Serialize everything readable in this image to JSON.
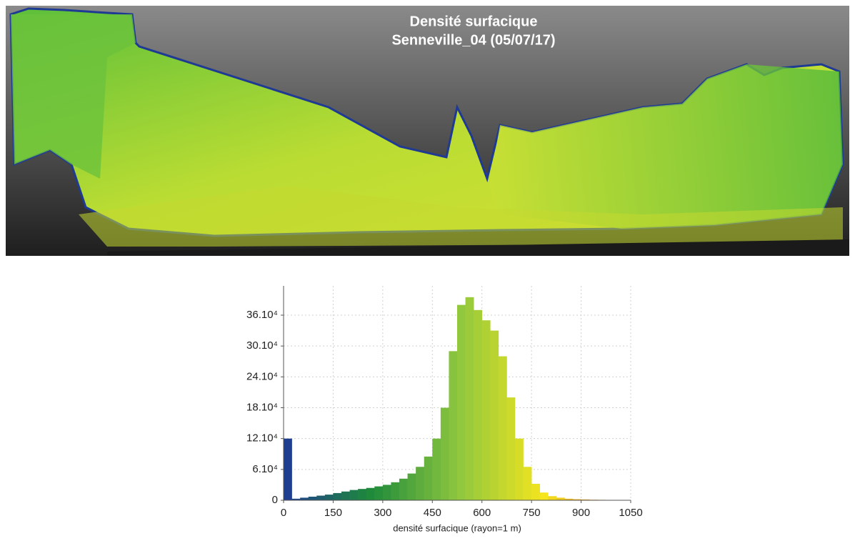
{
  "image": {
    "title_lines": [
      "Densité surfacique",
      "Senneville_04 (05/07/17)"
    ]
  },
  "chart_data": {
    "type": "histogram",
    "x_label": "densité surfacique (rayon=1 m)",
    "bins": [
      0,
      25,
      50,
      75,
      100,
      125,
      150,
      175,
      200,
      225,
      250,
      275,
      300,
      325,
      350,
      375,
      400,
      425,
      450,
      475,
      500,
      525,
      550,
      575,
      600,
      625,
      650,
      675,
      700,
      725,
      750,
      775,
      800,
      825,
      850,
      875,
      900,
      925,
      950,
      975,
      1000,
      1025,
      1050
    ],
    "values": [
      120000,
      3000,
      5000,
      7000,
      9000,
      11000,
      14000,
      17000,
      20000,
      22000,
      24000,
      27000,
      30000,
      35000,
      42000,
      52000,
      65000,
      85000,
      120000,
      180000,
      290000,
      380000,
      395000,
      370000,
      350000,
      330000,
      280000,
      200000,
      120000,
      65000,
      32000,
      15000,
      8000,
      5000,
      3000,
      2000,
      1500,
      1000,
      800,
      500,
      300,
      200
    ],
    "colorscale": [
      "#1f3a93",
      "#1e8a3a",
      "#8cc63f",
      "#f5e61e",
      "#e05a1e"
    ],
    "xlim": [
      0,
      1050
    ],
    "xticks": [
      0,
      150,
      300,
      450,
      600,
      750,
      900,
      1050
    ],
    "ylim": [
      0,
      417000
    ],
    "yticks": [
      0,
      {
        "value": 60000,
        "label": "6.10⁴"
      },
      {
        "value": 120000,
        "label": "12.10⁴"
      },
      {
        "value": 180000,
        "label": "18.10⁴"
      },
      {
        "value": 240000,
        "label": "24.10⁴"
      },
      {
        "value": 300000,
        "label": "30.10⁴"
      },
      {
        "value": 360000,
        "label": "36.10⁴"
      }
    ],
    "grid": true
  }
}
